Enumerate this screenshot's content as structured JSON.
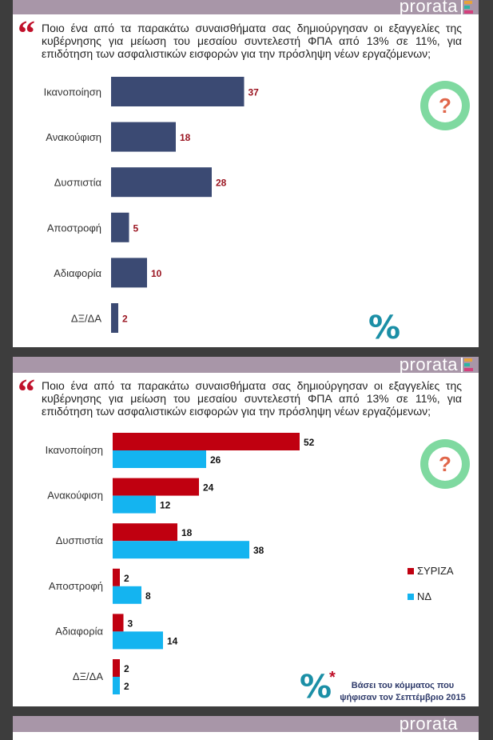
{
  "brand": "prorata",
  "colors": {
    "header": "#a896a8",
    "bar_single": "#3b4a73",
    "syriza": "#c00010",
    "nd": "#14b4f0",
    "quote": "#c0102a",
    "question_icon_ring": "#7fd9a0",
    "question_icon_mark": "#e0664a",
    "percent_icon": "#1b8fa6"
  },
  "icons": {
    "quote": "left-double-quote-icon",
    "question": "question-bubble-icon",
    "percent": "percent-icon",
    "brand_mark": "prorata-logo-mark-icon"
  },
  "slides": [
    {
      "question": "Ποιο ένα από τα παρακάτω συναισθήματα σας δημιούργησαν οι εξαγγελίες της κυβέρνησης για μείωση του μεσαίου συντελεστή ΦΠΑ από 13% σε 11%, για επιδότηση των ασφαλιστικών εισφορών για την πρόσληψη νέων εργαζόμενων;"
    },
    {
      "question": "Ποιο ένα από τα παρακάτω συναισθήματα σας δημιούργησαν οι εξαγγελίες της κυβέρνησης για μείωση του μεσαίου συντελεστή ΦΠΑ από 13% σε 11%, για επιδότηση των ασφαλιστικών εισφορών για την πρόσληψη νέων εργαζόμενων;",
      "note_star": "*",
      "note": "Βάσει του κόμματος που ψήφισαν τον Σεπτέμβριο 2015"
    }
  ],
  "chart_data": [
    {
      "type": "bar",
      "orientation": "horizontal",
      "categories": [
        "Ικανοποίηση",
        "Ανακούφιση",
        "Δυσπιστία",
        "Αποστροφή",
        "Αδιαφορία",
        "ΔΞ/ΔΑ"
      ],
      "values": [
        37,
        18,
        28,
        5,
        10,
        2
      ],
      "xlim": [
        0,
        60
      ],
      "grid": false,
      "legend": "none"
    },
    {
      "type": "bar",
      "orientation": "horizontal",
      "categories": [
        "Ικανοποίηση",
        "Ανακούφιση",
        "Δυσπιστία",
        "Αποστροφή",
        "Αδιαφορία",
        "ΔΞ/ΔΑ"
      ],
      "series": [
        {
          "name": "ΣΥΡΙΖΑ",
          "values": [
            52,
            24,
            18,
            2,
            3,
            2
          ]
        },
        {
          "name": "ΝΔ",
          "values": [
            26,
            12,
            38,
            8,
            14,
            2
          ]
        }
      ],
      "xlim": [
        0,
        60
      ],
      "grid": false,
      "legend": "right"
    }
  ]
}
